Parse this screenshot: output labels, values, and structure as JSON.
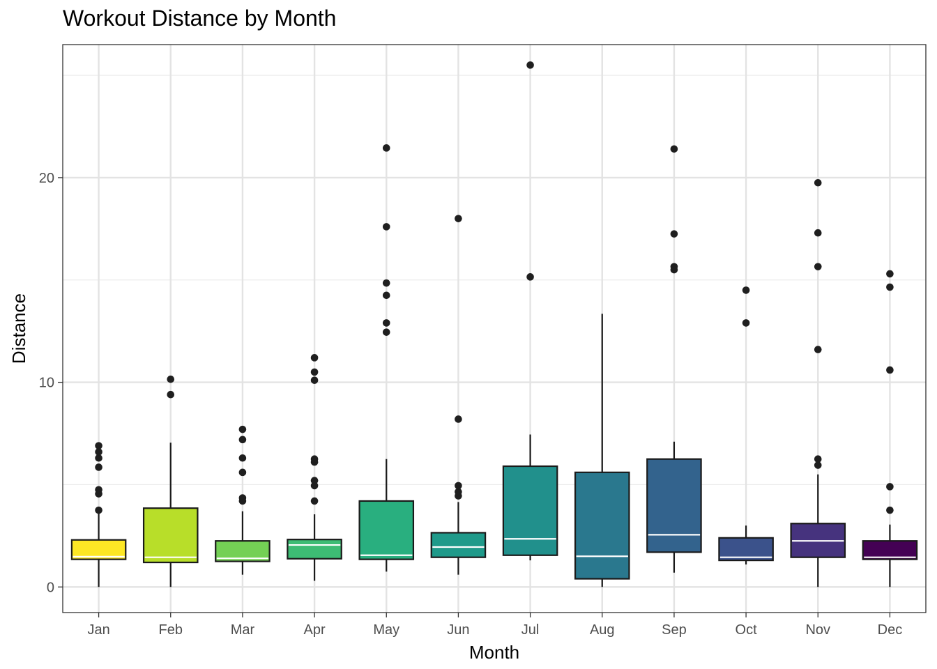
{
  "chart_data": {
    "type": "box",
    "title": "Workout Distance by Month",
    "xlabel": "Month",
    "ylabel": "Distance",
    "ylim": [
      -1.25,
      26.5
    ],
    "yticks": [
      0,
      10,
      20
    ],
    "grid": true,
    "categories": [
      "Jan",
      "Feb",
      "Mar",
      "Apr",
      "May",
      "Jun",
      "Jul",
      "Aug",
      "Sep",
      "Oct",
      "Nov",
      "Dec"
    ],
    "colors": [
      "#FDE725",
      "#B8DE29",
      "#74D055",
      "#3DBC74",
      "#29AF7F",
      "#1F9A8A",
      "#21908C",
      "#2A788E",
      "#33638D",
      "#3B528B",
      "#46337E",
      "#440154"
    ],
    "boxes": [
      {
        "month": "Jan",
        "lower_whisker": 0.0,
        "q1": 1.35,
        "median": 1.48,
        "q3": 2.3,
        "upper_whisker": 3.6,
        "outliers": [
          3.75,
          4.55,
          4.75,
          5.85,
          6.3,
          6.6,
          6.9
        ]
      },
      {
        "month": "Feb",
        "lower_whisker": 0.0,
        "q1": 1.2,
        "median": 1.45,
        "q3": 3.85,
        "upper_whisker": 7.05,
        "outliers": [
          9.4,
          10.15
        ]
      },
      {
        "month": "Mar",
        "lower_whisker": 0.6,
        "q1": 1.25,
        "median": 1.4,
        "q3": 2.25,
        "upper_whisker": 3.7,
        "outliers": [
          4.2,
          4.35,
          5.6,
          6.3,
          7.2,
          7.7
        ]
      },
      {
        "month": "Apr",
        "lower_whisker": 0.3,
        "q1": 1.38,
        "median": 2.05,
        "q3": 2.32,
        "upper_whisker": 3.55,
        "outliers": [
          4.2,
          4.95,
          5.2,
          6.1,
          6.25,
          10.1,
          10.5,
          11.2
        ]
      },
      {
        "month": "May",
        "lower_whisker": 0.75,
        "q1": 1.35,
        "median": 1.55,
        "q3": 4.2,
        "upper_whisker": 6.25,
        "outliers": [
          12.45,
          12.9,
          14.25,
          14.85,
          17.6,
          21.45
        ]
      },
      {
        "month": "Jun",
        "lower_whisker": 0.6,
        "q1": 1.45,
        "median": 1.95,
        "q3": 2.65,
        "upper_whisker": 4.15,
        "outliers": [
          4.45,
          4.65,
          4.95,
          8.2,
          18.0
        ]
      },
      {
        "month": "Jul",
        "lower_whisker": 1.3,
        "q1": 1.55,
        "median": 2.35,
        "q3": 5.9,
        "upper_whisker": 7.45,
        "outliers": [
          15.15,
          25.5
        ]
      },
      {
        "month": "Aug",
        "lower_whisker": 0.0,
        "q1": 0.4,
        "median": 1.5,
        "q3": 5.6,
        "upper_whisker": 13.35,
        "outliers": []
      },
      {
        "month": "Sep",
        "lower_whisker": 0.7,
        "q1": 1.7,
        "median": 2.55,
        "q3": 6.25,
        "upper_whisker": 7.1,
        "outliers": [
          15.5,
          15.65,
          17.25,
          21.4
        ]
      },
      {
        "month": "Oct",
        "lower_whisker": 1.1,
        "q1": 1.3,
        "median": 1.45,
        "q3": 2.4,
        "upper_whisker": 3.0,
        "outliers": [
          12.9,
          14.5
        ]
      },
      {
        "month": "Nov",
        "lower_whisker": 0.0,
        "q1": 1.45,
        "median": 2.25,
        "q3": 3.1,
        "upper_whisker": 5.5,
        "outliers": [
          5.95,
          6.25,
          11.6,
          15.65,
          17.3,
          19.75
        ]
      },
      {
        "month": "Dec",
        "lower_whisker": 0.0,
        "q1": 1.35,
        "median": 1.45,
        "q3": 2.25,
        "upper_whisker": 3.05,
        "outliers": [
          3.75,
          4.9,
          10.6,
          14.65,
          15.3
        ]
      }
    ]
  }
}
